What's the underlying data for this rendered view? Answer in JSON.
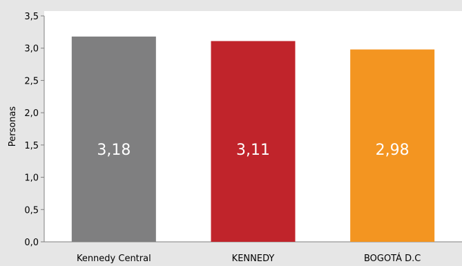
{
  "chart_data": {
    "type": "bar",
    "title": "",
    "xlabel": "",
    "ylabel": "Personas",
    "ylim": [
      0,
      3.5
    ],
    "ytick_labels": [
      "0,0",
      "0,5",
      "1,0",
      "1,5",
      "2,0",
      "2,5",
      "3,0",
      "3,5"
    ],
    "categories": [
      "Kennedy Central",
      "KENNEDY",
      "BOGOTÁ D.C"
    ],
    "values": [
      3.18,
      3.11,
      2.98
    ],
    "value_labels": [
      "3,18",
      "3,11",
      "2,98"
    ],
    "colors": [
      "#7f7f80",
      "#c0242b",
      "#f39521"
    ],
    "grid": false,
    "legend": "none"
  }
}
